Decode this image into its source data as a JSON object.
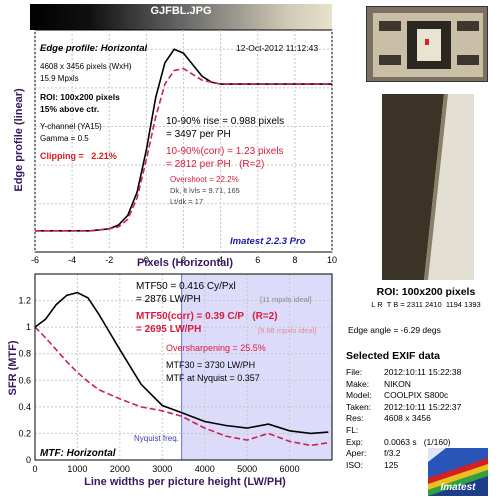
{
  "window": {
    "title": "GJFBL.JPG"
  },
  "edge_chart": {
    "header": "Edge profile: Horizontal",
    "timestamp": "12-Oct-2012 11:12:43",
    "info": [
      "4608 x 3456 pixels (WxH)",
      "15.9 Mpxls"
    ],
    "roi_lines": [
      "ROI: 100x200 pixels",
      "15% above ctr."
    ],
    "channel_lines": [
      "Y-channel (YA15)",
      "Gamma = 0.5"
    ],
    "clipping": "Clipping =   2.21%",
    "rise_lines": [
      "10-90% rise = 0.988 pixels",
      "= 3497 per PH"
    ],
    "corr_lines": [
      "10-90%(corr) = 1.23 pixels",
      "= 2812 per PH   (R=2)"
    ],
    "small_lines": [
      "Overshoot = 22.2%",
      "Dk, lt lvls = 9.71, 165",
      "Lt/dk = 17"
    ],
    "brand": "Imatest 2.2.3 Pro"
  },
  "mtf_chart": {
    "header": "MTF: Horizontal",
    "mtf50_lines": [
      "MTF50 = 0.416 Cy/Pxl",
      "= 2876 LW/PH"
    ],
    "mtf50_note": "[11 mpxls ideal]",
    "mtf50corr_lines": [
      "MTF50(corr) = 0.39 C/P   (R=2)",
      "= 2695 LW/PH"
    ],
    "mtf50corr_note": "[9.68 mpxls ideal]",
    "oversharpening": "Oversharpening = 25.5%",
    "mtf30": "MTF30 = 3730 LW/PH",
    "mtf_nyquist": "MTF at Nyquist = 0.357",
    "nyquist_label": "Nyquist freq."
  },
  "chart_data": [
    {
      "type": "line",
      "xlabel": "Pixels (Horizontal)",
      "ylabel": "Edge profile (linear)",
      "xlim": [
        -6,
        10
      ],
      "xticks": [
        -6,
        -4,
        -2,
        0,
        2,
        4,
        6,
        8,
        10
      ],
      "grid": true,
      "series": [
        {
          "color": "#000000",
          "style": "solid",
          "x": [
            -6,
            -5,
            -4,
            -3,
            -2,
            -1.5,
            -1,
            -0.5,
            0,
            0.5,
            1,
            1.5,
            2,
            2.5,
            3,
            3.5,
            4,
            5,
            6,
            8,
            10
          ],
          "y": [
            0.06,
            0.06,
            0.06,
            0.06,
            0.07,
            0.09,
            0.14,
            0.26,
            0.48,
            0.75,
            0.93,
            1.0,
            0.98,
            0.92,
            0.86,
            0.83,
            0.82,
            0.82,
            0.82,
            0.82,
            0.82
          ]
        },
        {
          "color": "#cc2255",
          "style": "dashed",
          "x": [
            -6,
            -5,
            -4,
            -3,
            -2,
            -1.5,
            -1,
            -0.5,
            0,
            0.5,
            1,
            1.5,
            2,
            2.5,
            3,
            3.5,
            4,
            5,
            6,
            8,
            10
          ],
          "y": [
            0.06,
            0.06,
            0.06,
            0.06,
            0.07,
            0.08,
            0.12,
            0.23,
            0.43,
            0.65,
            0.82,
            0.89,
            0.9,
            0.87,
            0.84,
            0.83,
            0.82,
            0.82,
            0.82,
            0.82,
            0.82
          ]
        }
      ]
    },
    {
      "type": "line",
      "xlabel": "Line widths per picture height (LW/PH)",
      "ylabel": "SFR (MTF)",
      "xlim": [
        0,
        7000
      ],
      "ylim": [
        0,
        1.4
      ],
      "xticks": [
        0,
        1000,
        2000,
        3000,
        4000,
        5000,
        6000
      ],
      "yticks": [
        0,
        0.2,
        0.4,
        0.6,
        0.8,
        1,
        1.2
      ],
      "grid": true,
      "nyquist_x": 3456,
      "series": [
        {
          "color": "#000000",
          "style": "solid",
          "x": [
            0,
            250,
            500,
            750,
            1000,
            1250,
            1500,
            2000,
            2500,
            3000,
            3456,
            4000,
            4500,
            5000,
            5500,
            6000,
            6500,
            6912
          ],
          "y": [
            1.0,
            1.06,
            1.17,
            1.24,
            1.26,
            1.22,
            1.1,
            0.83,
            0.57,
            0.41,
            0.357,
            0.29,
            0.26,
            0.24,
            0.27,
            0.22,
            0.2,
            0.21
          ]
        },
        {
          "color": "#cc2255",
          "style": "dashed",
          "x": [
            0,
            250,
            500,
            750,
            1000,
            1250,
            1500,
            2000,
            2500,
            3000,
            3456,
            4000,
            4500,
            5000,
            5500,
            6000,
            6500,
            6912
          ],
          "y": [
            1.0,
            0.92,
            0.83,
            0.74,
            0.66,
            0.59,
            0.53,
            0.46,
            0.4,
            0.37,
            0.33,
            0.24,
            0.18,
            0.15,
            0.2,
            0.14,
            0.11,
            0.13
          ]
        }
      ]
    }
  ],
  "roi": {
    "title": "ROI: 100x200 pixels",
    "ltrb": "L R  T B = 2311 2410  1194 1393"
  },
  "edge_angle": "Edge angle = -6.29 degs",
  "exif": {
    "title": "Selected EXIF data",
    "rows": [
      {
        "key": "File:",
        "value": "2012:10:11 15:22:38"
      },
      {
        "key": "Make:",
        "value": "NIKON"
      },
      {
        "key": "Model:",
        "value": "COOLPIX S800c"
      },
      {
        "key": "Taken:",
        "value": "2012:10:11 15:22:37"
      },
      {
        "key": "Res:",
        "value": "4608 x 3456"
      },
      {
        "key": "FL:",
        "value": ""
      },
      {
        "key": "Exp:",
        "value": "0.0063 s   (1/160)"
      },
      {
        "key": "Aper:",
        "value": "f/3.2"
      },
      {
        "key": "ISO:",
        "value": "125"
      }
    ]
  },
  "logo": {
    "text": "Imatest"
  }
}
